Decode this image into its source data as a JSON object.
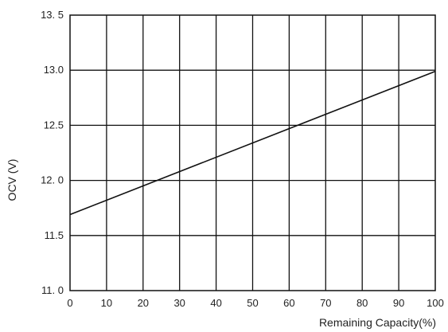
{
  "chart_data": {
    "type": "line",
    "title": "",
    "xlabel": "Remaining Capacity(%)",
    "ylabel": "OCV (V)",
    "xlim": [
      0,
      100
    ],
    "ylim": [
      11.0,
      13.5
    ],
    "grid": true,
    "x_ticks": [
      0,
      10,
      20,
      30,
      40,
      50,
      60,
      70,
      80,
      90,
      100
    ],
    "x_tick_labels": [
      "0",
      "10",
      "20",
      "30",
      "40",
      "50",
      "60",
      "70",
      "80",
      "90",
      "100"
    ],
    "y_ticks": [
      11.0,
      11.5,
      12.0,
      12.5,
      13.0,
      13.5
    ],
    "y_tick_labels": [
      "11. 0",
      "11.5",
      "12. 0",
      "12.5",
      "13.0",
      "13. 5"
    ],
    "series": [
      {
        "x": [
          0,
          100
        ],
        "y": [
          11.69,
          12.99
        ]
      }
    ],
    "colors": {
      "line": "#111111",
      "grid": "#111111"
    }
  }
}
